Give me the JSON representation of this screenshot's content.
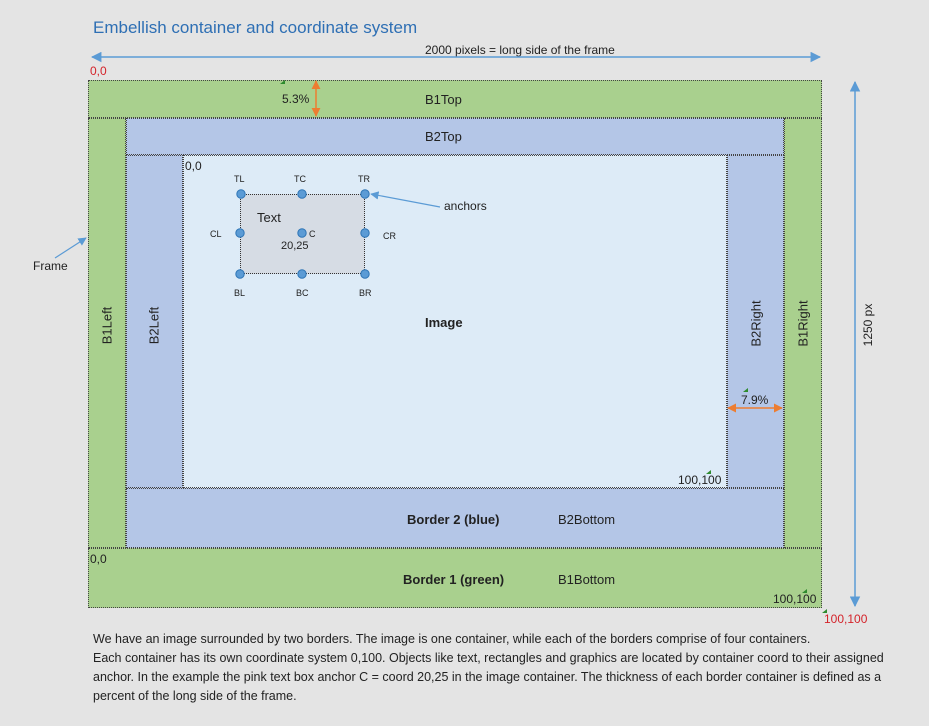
{
  "title": "Embellish container and coordinate system",
  "width_note": "2000 pixels = long side of the frame",
  "height_note": "1250 px",
  "frame_label": "Frame",
  "anchors_label": "anchors",
  "origin_top_left": "0,0",
  "origin_image": "0,0",
  "origin_bottom": "0,0",
  "end_image": "100,100",
  "end_frame_inner": "100,100",
  "end_frame_outer": "100,100",
  "b1top": "B1Top",
  "b2top": "B2Top",
  "b1left": "B1Left",
  "b2left": "B2Left",
  "b1right": "B1Right",
  "b2right": "B2Right",
  "b2bottom": "B2Bottom",
  "b1bottom": "B1Bottom",
  "border2": "Border 2 (blue)",
  "border1": "Border 1 (green)",
  "image": "Image",
  "pct_top": "5.3%",
  "pct_right": "7.9%",
  "textbox": {
    "text": "Text",
    "center_label": "C",
    "coord": "20,25",
    "tl": "TL",
    "tc": "TC",
    "tr": "TR",
    "cl": "CL",
    "cr": "CR",
    "bl": "BL",
    "bc": "BC",
    "br": "BR"
  },
  "paragraph": [
    "We have an image surrounded by two borders.  The image is one container, while each of the borders comprise of four containers.",
    "Each container has its own coordinate system 0,100.  Objects like text, rectangles and graphics are located by container coord to their assigned anchor.  In the example the pink text box anchor C = coord 20,25 in the image container.  The thickness of each border container is defined as a percent of the long side of the frame."
  ],
  "colors": {
    "green": "#a9d08e",
    "blue": "#b4c6e7",
    "image": "#ddebf7",
    "title": "#2e6fb4",
    "arrow_blue": "#5b9bd5",
    "arrow_orange": "#ed7d31",
    "red": "#d4232a"
  }
}
